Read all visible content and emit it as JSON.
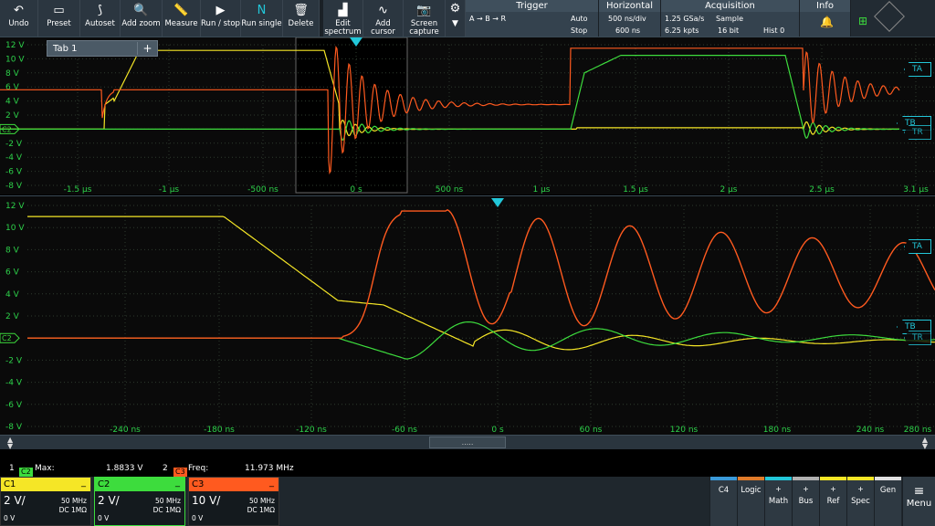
{
  "toolbar": {
    "buttons": [
      {
        "label": "Undo",
        "icon": "↶"
      },
      {
        "label": "Preset",
        "icon": "▭"
      },
      {
        "label": "Autoset",
        "icon": "⟆"
      },
      {
        "label": "Add zoom",
        "icon": "🔍"
      },
      {
        "label": "Measure",
        "icon": "📏"
      },
      {
        "label": "Run / stop",
        "icon": "▶"
      },
      {
        "label": "Run single",
        "icon": "N"
      },
      {
        "label": "Delete",
        "icon": "🗑"
      },
      {
        "label": "Edit\nspectrum",
        "icon": "▟"
      },
      {
        "label": "Add\ncursor",
        "icon": "∿"
      },
      {
        "label": "Screen\ncapture",
        "icon": "📷"
      }
    ],
    "gear_icon": "⚙",
    "dropdown_icon": "▼"
  },
  "trigger": {
    "title": "Trigger",
    "source": "A → B → R",
    "mode": "Auto",
    "state": "Stop"
  },
  "horizontal": {
    "title": "Horizontal",
    "scale": "500 ns/div",
    "position": "600 ns"
  },
  "acquisition": {
    "title": "Acquisition",
    "rate": "1.25 GSa/s",
    "points": "6.25 kpts",
    "mode": "Sample",
    "bits": "16 bit",
    "hist": "Hist 0"
  },
  "info": {
    "title": "Info"
  },
  "tab": {
    "label": "Tab 1",
    "add": "+"
  },
  "upper_plot": {
    "y_labels": [
      "12 V",
      "10 V",
      "8 V",
      "6 V",
      "4 V",
      "2 V",
      "",
      "-2 V",
      "-4 V",
      "-6 V",
      "-8 V"
    ],
    "x_labels": [
      "-1.5 µs",
      "-1 µs",
      "-500 ns",
      "0 s",
      "500 ns",
      "1 µs",
      "1.5 µs",
      "2 µs",
      "2.5 µs",
      "3.1 µs"
    ],
    "ch_marker": "C2",
    "flags": [
      "TA",
      "TB",
      "TR"
    ]
  },
  "lower_plot": {
    "y_labels": [
      "12 V",
      "10 V",
      "8 V",
      "6 V",
      "4 V",
      "2 V",
      "",
      "-2 V",
      "-4 V",
      "-6 V",
      "-8 V"
    ],
    "x_labels": [
      "-240 ns",
      "-180 ns",
      "-120 ns",
      "-60 ns",
      "0 s",
      "60 ns",
      "120 ns",
      "180 ns",
      "240 ns",
      "280 ns"
    ],
    "ch_marker": "C2",
    "flags": [
      "TA",
      "TB",
      "TR"
    ]
  },
  "splitter": {
    "grip": "....."
  },
  "measurements": [
    {
      "index": "1",
      "chip": "C2",
      "name": "Max:",
      "value": "1.8833 V"
    },
    {
      "index": "2",
      "chip": "C3",
      "name": "Freq:",
      "value": "11.973 MHz"
    }
  ],
  "channels": [
    {
      "name": "C1",
      "scale": "2 V/",
      "bw": "50 MHz",
      "coupling": "DC 1MΩ",
      "offset": "0 V",
      "color": "#f5e626"
    },
    {
      "name": "C2",
      "scale": "2 V/",
      "bw": "50 MHz",
      "coupling": "DC 1MΩ",
      "offset": "0 V",
      "color": "#3ddc3d"
    },
    {
      "name": "C3",
      "scale": "10 V/",
      "bw": "50 MHz",
      "coupling": "DC 1MΩ",
      "offset": "0 V",
      "color": "#ff5a1f"
    }
  ],
  "side_buttons": [
    {
      "label": "C4",
      "plus": "",
      "color": "#3a9ad9"
    },
    {
      "label": "Logic",
      "plus": "",
      "color": "#e07b2a"
    },
    {
      "label": "Math",
      "plus": "+",
      "color": "#22c7d9"
    },
    {
      "label": "Bus",
      "plus": "+",
      "color": "#b0b0b0"
    },
    {
      "label": "Ref",
      "plus": "+",
      "color": "#f5e626"
    },
    {
      "label": "Spec",
      "plus": "+",
      "color": "#f5e626"
    },
    {
      "label": "Gen",
      "plus": "",
      "color": "#e0e0e0"
    }
  ],
  "menu": {
    "label": "Menu",
    "icon": "≡"
  },
  "colors": {
    "c1": "#f5e626",
    "c2": "#3ddc3d",
    "c3": "#ff5a1f",
    "trigger": "#22c7d9",
    "grid": "#2b3a2b"
  }
}
